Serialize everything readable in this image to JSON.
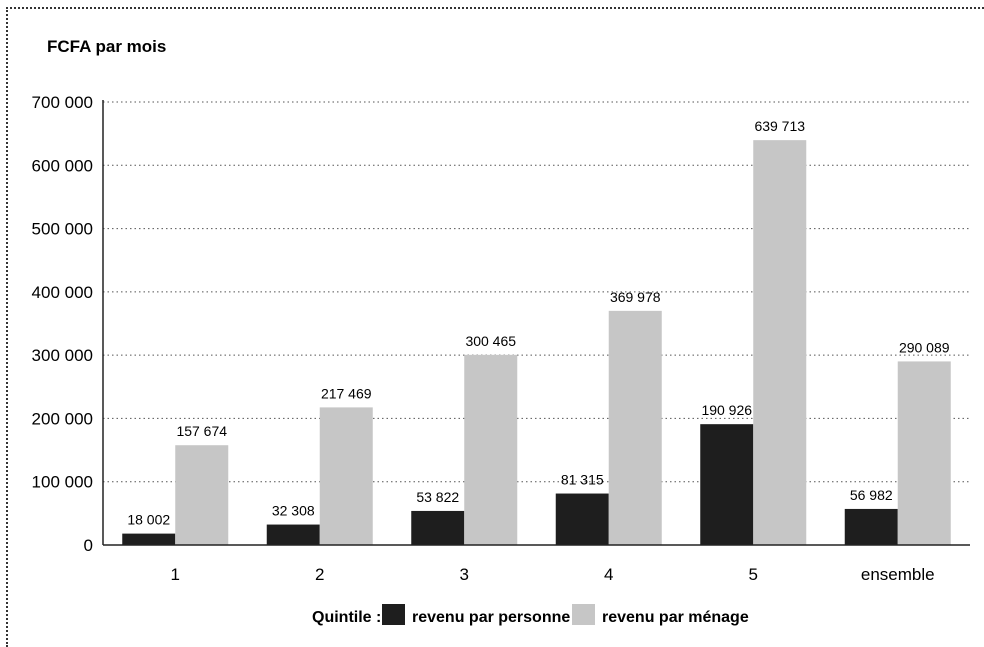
{
  "chart_data": {
    "type": "bar",
    "ylabel": "FCFA par mois",
    "categories": [
      "1",
      "2",
      "3",
      "4",
      "5",
      "ensemble"
    ],
    "ylim": [
      0,
      700000
    ],
    "yticks": [
      0,
      100000,
      200000,
      300000,
      400000,
      500000,
      600000,
      700000
    ],
    "ytick_labels": [
      "0",
      "100 000",
      "200 000",
      "300 000",
      "400 000",
      "500 000",
      "600 000",
      "700 000"
    ],
    "grid": true,
    "series": [
      {
        "name": "revenu par personne",
        "color": "#1e1e1e",
        "values": [
          18002,
          32308,
          53822,
          81315,
          190926,
          56982
        ],
        "labels": [
          "18 002",
          "32 308",
          "53 822",
          "81 315",
          "190 926",
          "56 982"
        ]
      },
      {
        "name": "revenu par ménage",
        "color": "#c6c6c6",
        "values": [
          157674,
          217469,
          300465,
          369978,
          639713,
          290089
        ],
        "labels": [
          "157 674",
          "217 469",
          "300 465",
          "369 978",
          "639 713",
          "290 089"
        ]
      }
    ],
    "legend": {
      "title": "Quintile :",
      "position": "bottom"
    }
  }
}
